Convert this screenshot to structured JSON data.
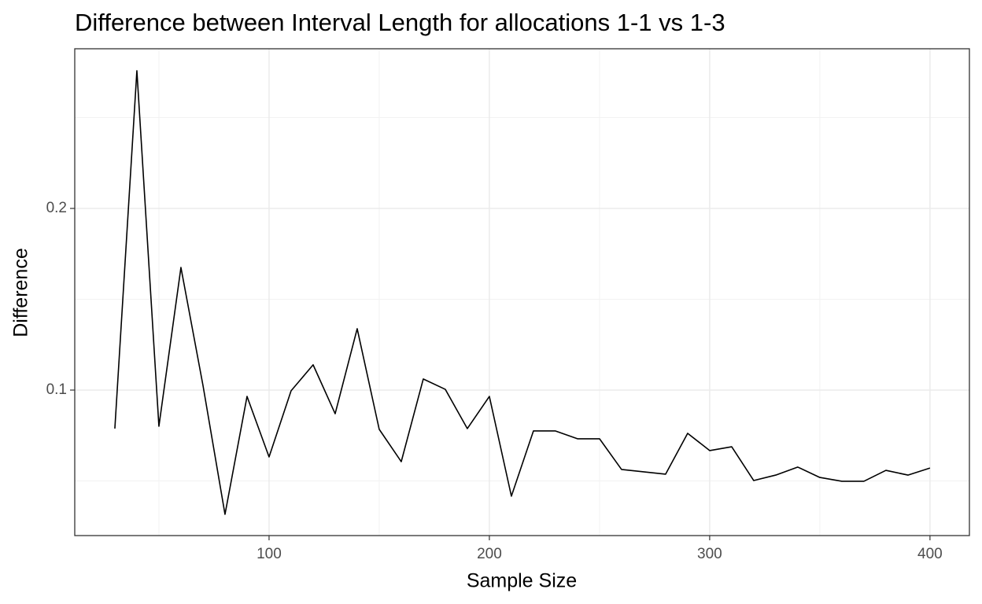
{
  "chart_data": {
    "type": "line",
    "title": "Difference between Interval Length for allocations 1-1 vs 1-3",
    "x_label": "Sample Size",
    "y_label": "Difference",
    "x": [
      30,
      40,
      50,
      60,
      70,
      80,
      90,
      100,
      110,
      120,
      130,
      140,
      150,
      160,
      170,
      180,
      190,
      200,
      210,
      220,
      230,
      240,
      250,
      260,
      270,
      280,
      290,
      300,
      310,
      320,
      330,
      340,
      350,
      360,
      370,
      380,
      390,
      400
    ],
    "series": [
      {
        "name": "Difference",
        "color": "#000000",
        "values": [
          0.0788,
          0.2758,
          0.0801,
          0.1675,
          0.1026,
          0.0316,
          0.0965,
          0.0632,
          0.0996,
          0.1139,
          0.087,
          0.1338,
          0.0784,
          0.0606,
          0.1061,
          0.1004,
          0.0788,
          0.0965,
          0.0416,
          0.0775,
          0.0775,
          0.0732,
          0.0732,
          0.0563,
          0.055,
          0.0537,
          0.0762,
          0.0667,
          0.0688,
          0.0502,
          0.0532,
          0.0576,
          0.0519,
          0.0498,
          0.0498,
          0.0558,
          0.0532,
          0.0571
        ]
      }
    ],
    "xlim": [
      11.8,
      417.9
    ],
    "ylim": [
      0.0199,
      0.2879
    ],
    "xticks": [
      100,
      200,
      300,
      400
    ],
    "yticks": [
      0.1,
      0.2
    ],
    "xminor": [
      50,
      150,
      250,
      350
    ],
    "yminor": [
      0.05,
      0.15,
      0.25
    ],
    "grid": true
  }
}
